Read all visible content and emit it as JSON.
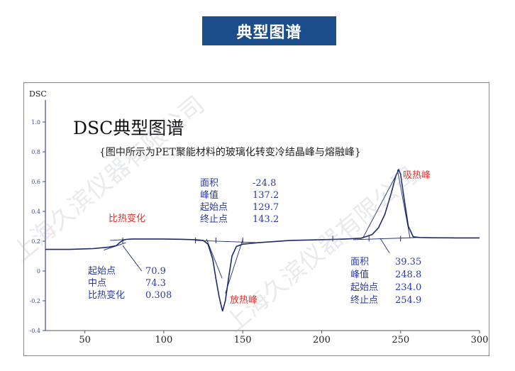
{
  "banner": {
    "title": "典型图谱"
  },
  "chart_data": {
    "type": "line",
    "title": "DSC典型图谱",
    "subtitle": "{图中所示为PET聚能材料的玻璃化转变冷结晶峰与熔融峰}",
    "ylabel": "DSC",
    "xlabel": "",
    "xlim": [
      25,
      300
    ],
    "ylim": [
      -0.4,
      1.1
    ],
    "x_ticks": [
      50,
      100,
      150,
      200,
      250,
      300
    ],
    "y_ticks": [
      {
        "v": 1.0,
        "label": "1.0"
      },
      {
        "v": 0.8,
        "label": "0.8"
      },
      {
        "v": 0.6,
        "label": "0.6"
      },
      {
        "v": 0.4,
        "label": "0.4"
      },
      {
        "v": 0.2,
        "label": "0.2"
      },
      {
        "v": 0.0,
        "label": "0"
      },
      {
        "v": -0.2,
        "label": "-0.2"
      },
      {
        "v": -0.4,
        "label": "-0.4"
      }
    ],
    "series": [
      {
        "x": [
          25,
          40,
          55,
          65,
          70,
          72,
          74,
          76,
          80,
          90,
          100,
          110,
          120,
          125,
          128,
          131,
          133,
          135,
          137.2,
          139,
          141,
          143.2,
          146,
          150,
          160,
          180,
          200,
          215,
          225,
          232,
          236,
          240,
          244,
          247,
          248.8,
          250,
          252,
          254.9,
          258,
          262,
          270,
          285,
          300
        ],
        "y": [
          0.145,
          0.145,
          0.15,
          0.16,
          0.17,
          0.19,
          0.205,
          0.212,
          0.215,
          0.215,
          0.215,
          0.213,
          0.21,
          0.205,
          0.18,
          0.08,
          -0.05,
          -0.17,
          -0.27,
          -0.2,
          -0.05,
          0.1,
          0.165,
          0.18,
          0.19,
          0.205,
          0.21,
          0.215,
          0.22,
          0.245,
          0.29,
          0.38,
          0.52,
          0.64,
          0.68,
          0.65,
          0.5,
          0.3,
          0.23,
          0.225,
          0.223,
          0.222,
          0.222
        ]
      }
    ],
    "annotations": {
      "glass": {
        "label": "比热变化",
        "rows": [
          {
            "k": "起始点",
            "v": "70.9"
          },
          {
            "k": "中点",
            "v": "74.3"
          },
          {
            "k": "比热变化",
            "v": "0.308"
          }
        ]
      },
      "cold_cryst": {
        "label": "放热峰",
        "rows": [
          {
            "k": "面积",
            "v": "-24.8"
          },
          {
            "k": "峰值",
            "v": "137.2"
          },
          {
            "k": "起始点",
            "v": "129.7"
          },
          {
            "k": "终止点",
            "v": "143.2"
          }
        ]
      },
      "melt": {
        "label": "吸热峰",
        "rows": [
          {
            "k": "面积",
            "v": "39.35"
          },
          {
            "k": "峰值",
            "v": "248.8"
          },
          {
            "k": "起始点",
            "v": "234.0"
          },
          {
            "k": "终止点",
            "v": "254.9"
          }
        ]
      }
    },
    "colors": {
      "curve": "#1c2a6e",
      "axis": "#3a4a9a",
      "label_red": "#e0302e",
      "label_blue": "#2a3aa8",
      "banner": "#1b4d8a"
    },
    "grid": false,
    "legend": "none"
  }
}
